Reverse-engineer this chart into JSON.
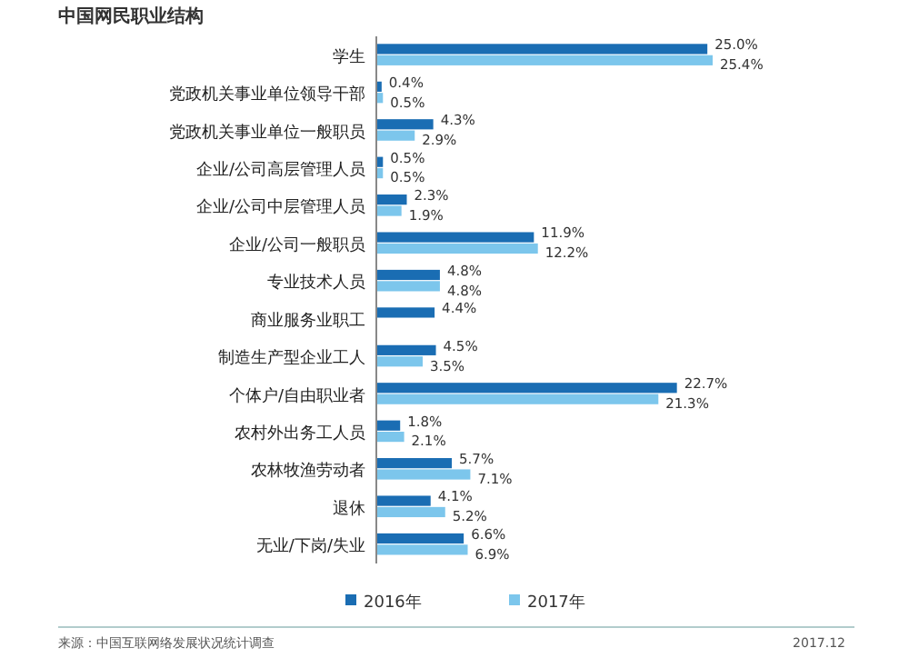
{
  "chart_data": {
    "type": "bar",
    "orientation": "horizontal",
    "title": "中国网民职业结构",
    "categories": [
      "学生",
      "党政机关事业单位领导干部",
      "党政机关事业单位一般职员",
      "企业/公司高层管理人员",
      "企业/公司中层管理人员",
      "企业/公司一般职员",
      "专业技术人员",
      "商业服务业职工",
      "制造生产型企业工人",
      "个体户/自由职业者",
      "农村外出务工人员",
      "农林牧渔劳动者",
      "退休",
      "无业/下岗/失业"
    ],
    "series": [
      {
        "name": "2016年",
        "color": "#1a6db3",
        "values": [
          25.0,
          0.4,
          4.3,
          0.5,
          2.3,
          11.9,
          4.8,
          4.4,
          4.5,
          22.7,
          1.8,
          5.7,
          4.1,
          6.6
        ],
        "value_labels": [
          "25.0%",
          "0.4%",
          "4.3%",
          "0.5%",
          "2.3%",
          "11.9%",
          "4.8%",
          "4.4%",
          "4.5%",
          "22.7%",
          "1.8%",
          "5.7%",
          "4.1%",
          "6.6%"
        ]
      },
      {
        "name": "2017年",
        "color": "#7cc6ec",
        "values": [
          25.4,
          0.5,
          2.9,
          0.5,
          1.9,
          12.2,
          4.8,
          null,
          3.5,
          21.3,
          2.1,
          7.1,
          5.2,
          6.9
        ],
        "value_labels": [
          "25.4%",
          "0.5%",
          "2.9%",
          "0.5%",
          "1.9%",
          "12.2%",
          "4.8%",
          null,
          "3.5%",
          "21.3%",
          "2.1%",
          "7.1%",
          "5.2%",
          "6.9%"
        ]
      }
    ],
    "legend": "bottom",
    "annotations": [
      "来源：中国互联网络发展状况统计调查",
      "2017.12"
    ]
  }
}
